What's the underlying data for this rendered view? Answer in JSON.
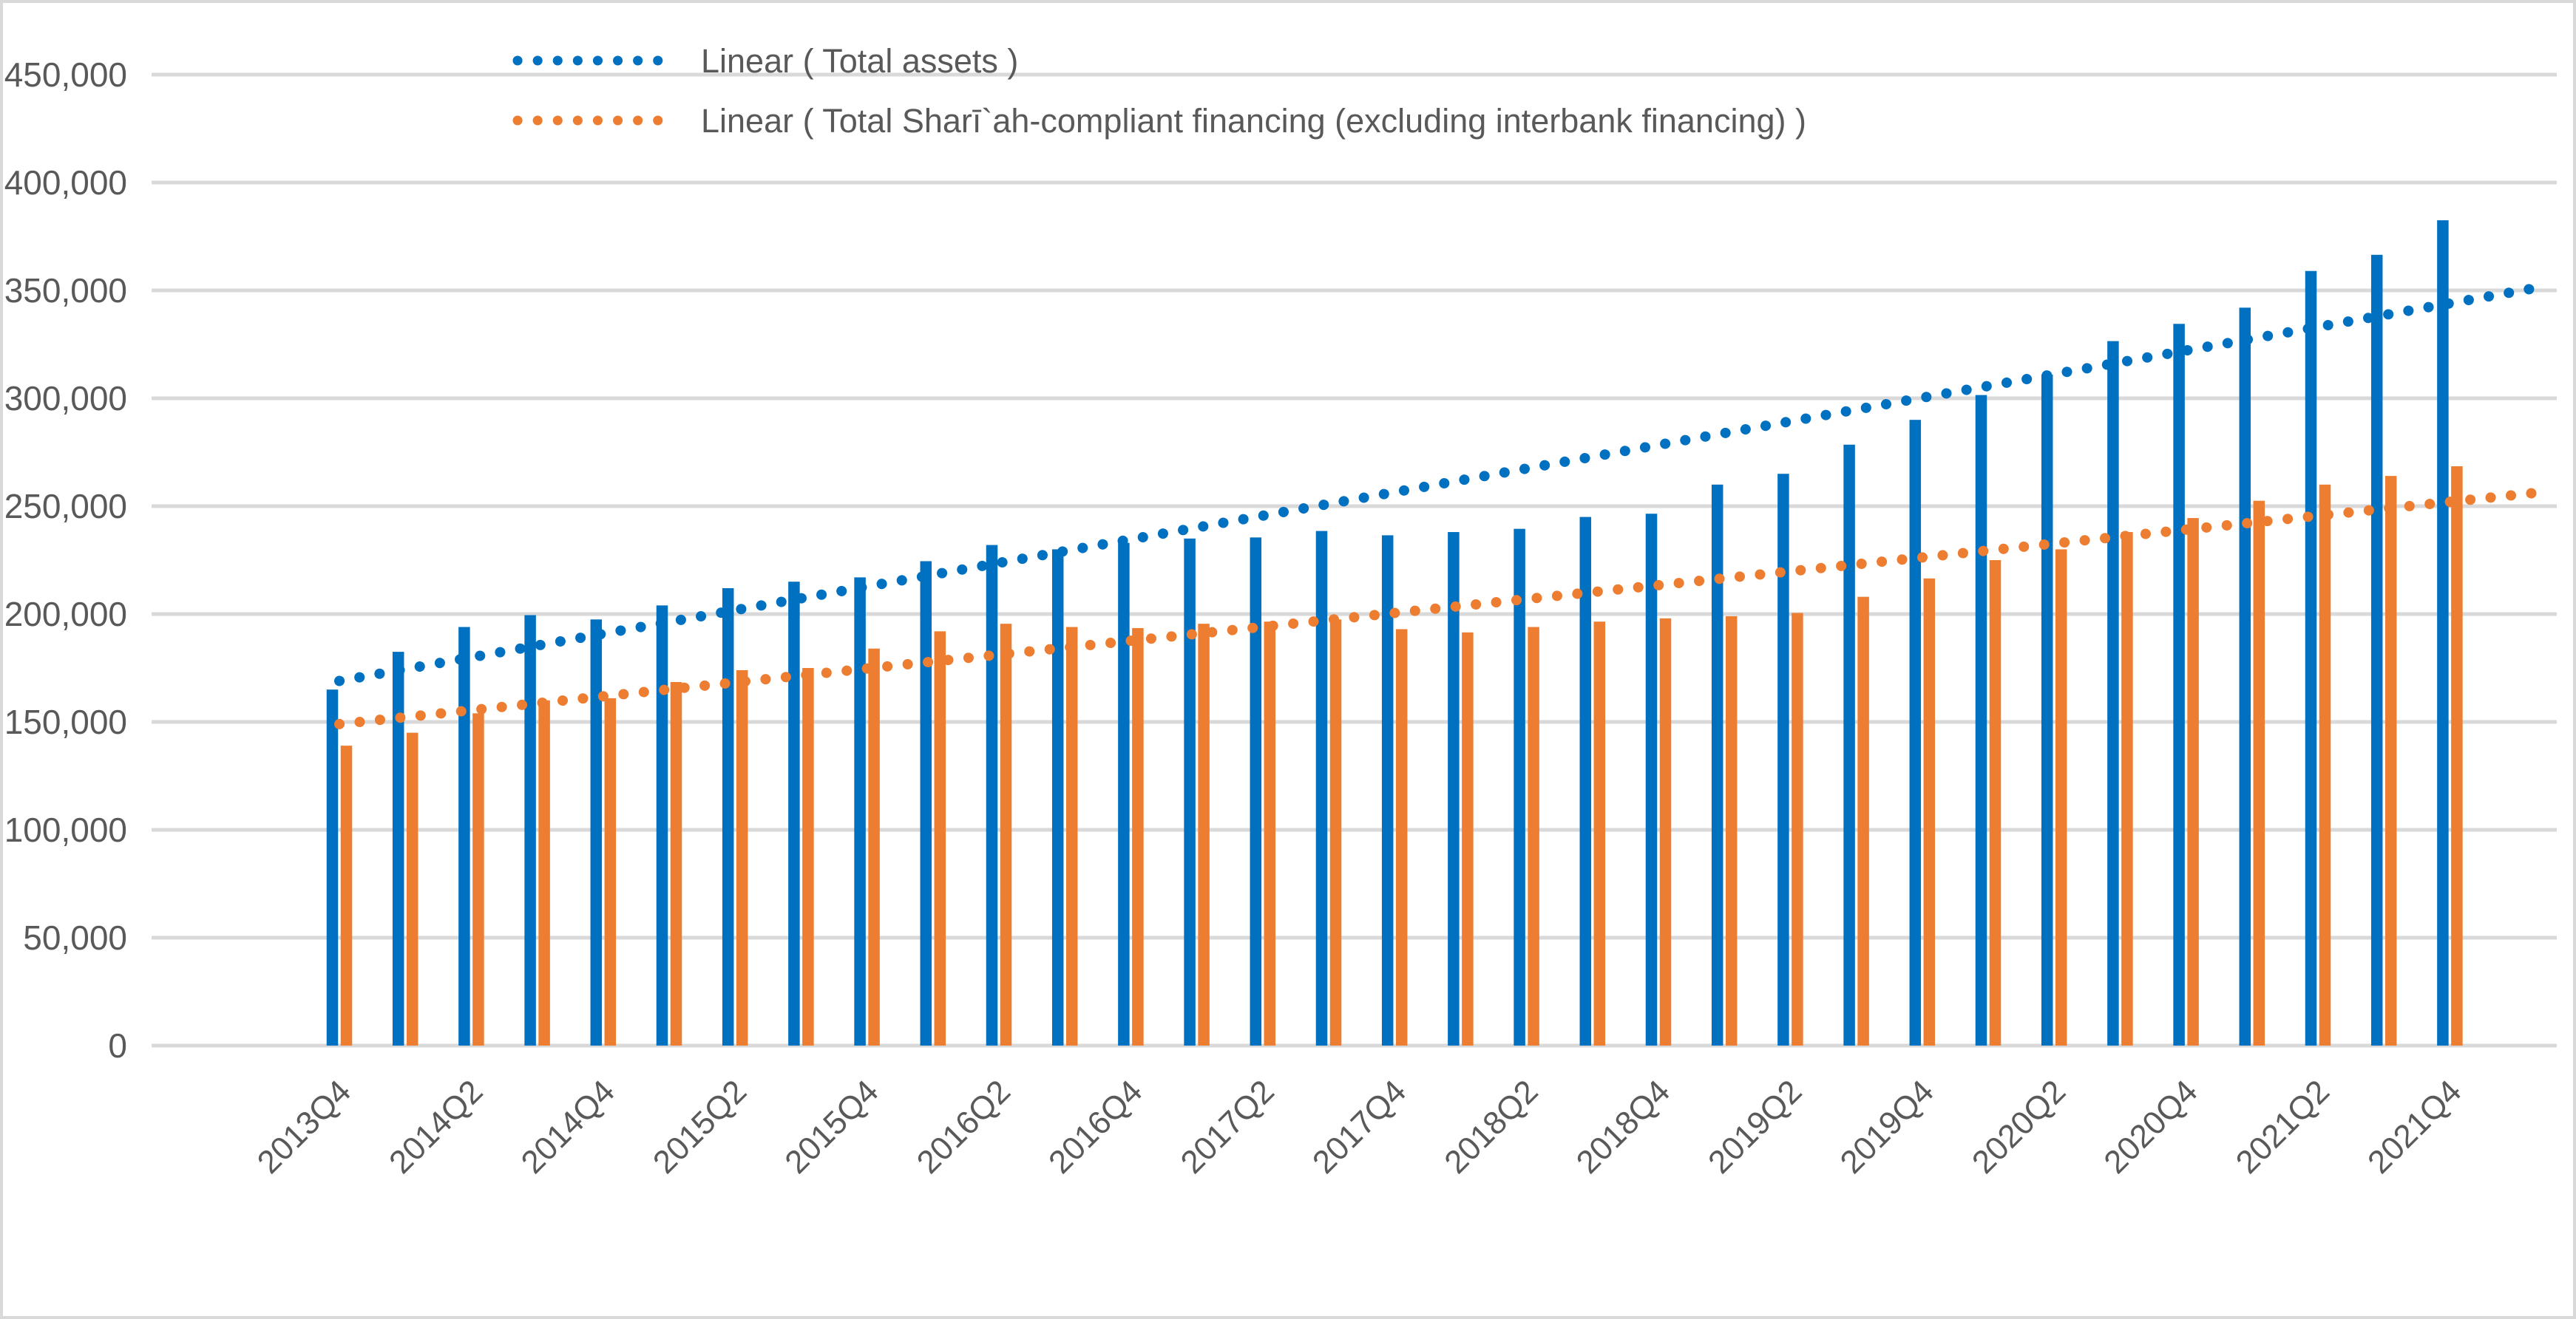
{
  "chart_data": {
    "type": "bar",
    "title": "",
    "xlabel": "",
    "ylabel": "",
    "y_axis": {
      "min": 0,
      "max": 450000,
      "step": 50000,
      "tick_labels": [
        "0",
        "50,000",
        "100,000",
        "150,000",
        "200,000",
        "250,000",
        "300,000",
        "350,000",
        "400,000",
        "450,000"
      ]
    },
    "grid": true,
    "categories": [
      "2013Q4",
      "2014Q1",
      "2014Q2",
      "2014Q3",
      "2014Q4",
      "2015Q1",
      "2015Q2",
      "2015Q3",
      "2015Q4",
      "2016Q1",
      "2016Q2",
      "2016Q3",
      "2016Q4",
      "2017Q1",
      "2017Q2",
      "2017Q3",
      "2017Q4",
      "2018Q1",
      "2018Q2",
      "2018Q3",
      "2018Q4",
      "2019Q1",
      "2019Q2",
      "2019Q3",
      "2019Q4",
      "2020Q1",
      "2020Q2",
      "2020Q3",
      "2020Q4",
      "2021Q1",
      "2021Q2",
      "2021Q3",
      "2021Q4"
    ],
    "x_tick_labels_shown": [
      "2013Q4",
      "2014Q2",
      "2014Q4",
      "2015Q2",
      "2015Q4",
      "2016Q2",
      "2016Q4",
      "2017Q2",
      "2017Q4",
      "2018Q2",
      "2018Q4",
      "2019Q2",
      "2019Q4",
      "2020Q2",
      "2020Q4",
      "2021Q2",
      "2021Q4"
    ],
    "series": [
      {
        "name": "Total assets",
        "color": "#0070C0",
        "values": [
          165000,
          182500,
          194000,
          199500,
          197500,
          204000,
          212000,
          215000,
          217000,
          224500,
          232000,
          230000,
          233000,
          235000,
          235500,
          238500,
          236500,
          238000,
          239500,
          245000,
          246500,
          260000,
          265000,
          278500,
          290000,
          301500,
          311000,
          326500,
          334500,
          342000,
          359000,
          366500,
          382500
        ]
      },
      {
        "name": "Total Shari`ah-compliant financing (excluding interbank financing)",
        "color": "#ED7D31",
        "values": [
          139000,
          145000,
          154000,
          160000,
          161000,
          168500,
          174000,
          175000,
          184000,
          192000,
          195500,
          194000,
          193500,
          195500,
          196500,
          197500,
          193000,
          191500,
          194000,
          196500,
          198000,
          199000,
          200500,
          208000,
          216500,
          225000,
          230000,
          238000,
          244500,
          252500,
          260000,
          264000,
          268500
        ]
      }
    ],
    "trendlines": [
      {
        "name": "Linear ( Total assets  )",
        "color": "#0070C0",
        "style": "dotted",
        "start_value": 169000,
        "end_value": 344000
      },
      {
        "name": "Linear ( Total Sharī`ah-compliant financing (excluding interbank financing)  )",
        "color": "#ED7D31",
        "style": "dotted",
        "start_value": 149000,
        "end_value": 252000
      }
    ],
    "legend": {
      "position": "inside-top-left",
      "entries": [
        {
          "label": "Linear ( Total assets  )",
          "color": "#0070C0",
          "marker": "dotted-line"
        },
        {
          "label": "Linear ( Total Sharī`ah-compliant financing (excluding interbank financing)  )",
          "color": "#ED7D31",
          "marker": "dotted-line"
        }
      ]
    },
    "colors": {
      "gridline": "#D9D9D9",
      "axis_text": "#595959",
      "legend_text": "#595959",
      "border": "#D9D9D9",
      "background": "#FFFFFF"
    }
  }
}
